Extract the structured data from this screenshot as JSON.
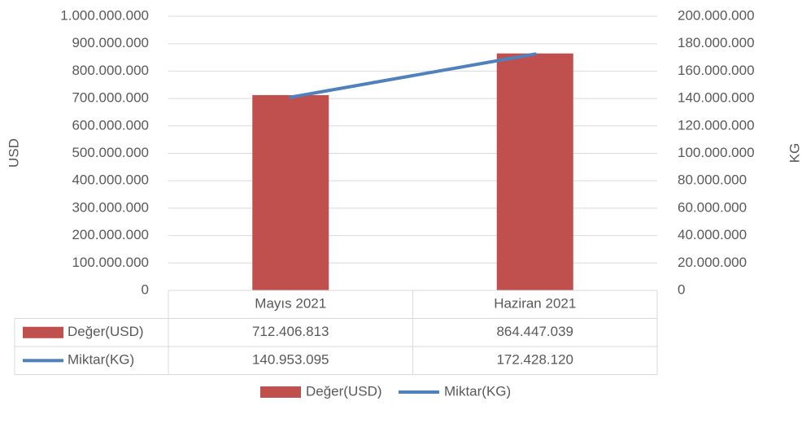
{
  "chart_data": {
    "type": "bar",
    "categories": [
      "Mayıs 2021",
      "Haziran 2021"
    ],
    "y_label": "USD",
    "y2_label": "KG",
    "series": [
      {
        "name": "Değer(USD)",
        "type": "bar",
        "color": "#c0504d",
        "axis": "y",
        "values": [
          712406813,
          864447039
        ],
        "value_labels": [
          "712.406.813",
          "864.447.039"
        ]
      },
      {
        "name": "Miktar(KG)",
        "type": "line",
        "color": "#4f81bd",
        "axis": "y2",
        "values": [
          140953095,
          172428120
        ],
        "value_labels": [
          "140.953.095",
          "172.428.120"
        ]
      }
    ],
    "ylim": [
      0,
      1000000000
    ],
    "yticks": [
      0,
      {
        "value": 100000000,
        "label": "100.000.000"
      },
      {
        "value": 200000000,
        "label": "200.000.000"
      },
      {
        "value": 300000000,
        "label": "300.000.000"
      },
      {
        "value": 400000000,
        "label": "400.000.000"
      },
      {
        "value": 500000000,
        "label": "500.000.000"
      },
      {
        "value": 600000000,
        "label": "600.000.000"
      },
      {
        "value": 700000000,
        "label": "700.000.000"
      },
      {
        "value": 800000000,
        "label": "800.000.000"
      },
      {
        "value": 900000000,
        "label": "900.000.000"
      },
      {
        "value": 1000000000,
        "label": "1.000.000.000"
      }
    ],
    "y2lim": [
      0,
      200000000
    ],
    "y2ticks": [
      0,
      {
        "value": 20000000,
        "label": "20.000.000"
      },
      {
        "value": 40000000,
        "label": "40.000.000"
      },
      {
        "value": 60000000,
        "label": "60.000.000"
      },
      {
        "value": 80000000,
        "label": "80.000.000"
      },
      {
        "value": 100000000,
        "label": "100.000.000"
      },
      {
        "value": 120000000,
        "label": "120.000.000"
      },
      {
        "value": 140000000,
        "label": "140.000.000"
      },
      {
        "value": 160000000,
        "label": "160.000.000"
      },
      {
        "value": 180000000,
        "label": "180.000.000"
      },
      {
        "value": 200000000,
        "label": "200.000.000"
      }
    ],
    "grid": true,
    "legend": "bottom",
    "data_table": true
  }
}
